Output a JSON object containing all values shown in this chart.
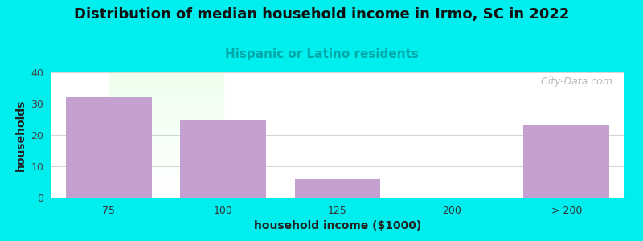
{
  "title": "Distribution of median household income in Irmo, SC in 2022",
  "subtitle": "Hispanic or Latino residents",
  "xlabel": "household income ($1000)",
  "ylabel": "households",
  "categories": [
    "75",
    "100",
    "125",
    "200",
    "> 200"
  ],
  "values": [
    32,
    25,
    6,
    0,
    23
  ],
  "bar_color": "#c4a0d0",
  "background_color": "#00eeee",
  "ylim": [
    0,
    40
  ],
  "yticks": [
    0,
    10,
    20,
    30,
    40
  ],
  "title_fontsize": 13,
  "subtitle_fontsize": 11,
  "subtitle_color": "#00aaaa",
  "axis_label_fontsize": 10,
  "tick_fontsize": 9,
  "watermark_text": "  City-Data.com",
  "watermark_color": "#aaaaaa",
  "grid_color": "#cccccc",
  "plot_bg_top_color": "#edfaed",
  "plot_bg_bottom_color": "#ffffff"
}
